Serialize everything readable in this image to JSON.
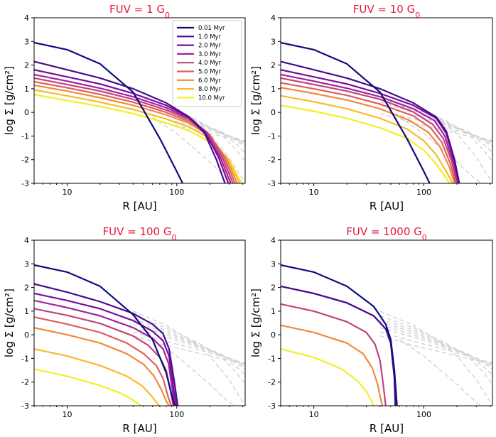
{
  "chart_data": [
    {
      "type": "line",
      "title": "FUV = 1 G₀",
      "title_prefix": "FUV = 1 G",
      "title_sub": "0",
      "xlabel": "R [AU]",
      "ylabel": "log Σ [g/cm²]",
      "xscale": "log",
      "xlim": [
        5,
        420
      ],
      "ylim": [
        -3,
        4
      ],
      "xticks": [
        10,
        100
      ],
      "yticks": [
        -3,
        -2,
        -1,
        0,
        1,
        2,
        3,
        4
      ],
      "legend": "top-right",
      "reference_curves": {
        "color": "#d4d4d4",
        "style": "dashed",
        "description": "unirradiated disc profiles at each age"
      },
      "series": [
        {
          "name": "0.01 Myr",
          "color": "#0c0c80",
          "x": [
            5,
            10,
            20,
            40,
            70,
            100,
            113
          ],
          "y": [
            2.95,
            2.65,
            2.05,
            0.85,
            -1.1,
            -2.5,
            -3
          ]
        },
        {
          "name": "1.0 Myr",
          "color": "#4b0c8f",
          "x": [
            5,
            10,
            20,
            40,
            80,
            130,
            180,
            230,
            275
          ],
          "y": [
            2.15,
            1.8,
            1.45,
            1.0,
            0.4,
            -0.2,
            -0.9,
            -2.0,
            -3
          ]
        },
        {
          "name": "2.0 Myr",
          "color": "#7a0c9e",
          "x": [
            5,
            10,
            20,
            40,
            80,
            130,
            180,
            240,
            295
          ],
          "y": [
            1.8,
            1.5,
            1.2,
            0.8,
            0.3,
            -0.2,
            -0.8,
            -1.9,
            -3
          ]
        },
        {
          "name": "3.0 Myr",
          "color": "#a0239c",
          "x": [
            5,
            10,
            20,
            40,
            80,
            130,
            180,
            250,
            310
          ],
          "y": [
            1.6,
            1.32,
            1.02,
            0.66,
            0.2,
            -0.25,
            -0.8,
            -1.9,
            -3
          ]
        },
        {
          "name": "4.0 Myr",
          "color": "#c1437e",
          "x": [
            5,
            10,
            20,
            40,
            80,
            130,
            190,
            260,
            325
          ],
          "y": [
            1.45,
            1.18,
            0.9,
            0.55,
            0.1,
            -0.3,
            -0.85,
            -1.9,
            -3
          ]
        },
        {
          "name": "5.0 Myr",
          "color": "#de6060",
          "x": [
            5,
            10,
            20,
            40,
            80,
            130,
            200,
            270,
            340
          ],
          "y": [
            1.3,
            1.04,
            0.76,
            0.43,
            0.0,
            -0.38,
            -0.95,
            -1.9,
            -3
          ]
        },
        {
          "name": "6.0 Myr",
          "color": "#f18a3c",
          "x": [
            5,
            10,
            20,
            40,
            80,
            130,
            200,
            280,
            355
          ],
          "y": [
            1.15,
            0.9,
            0.62,
            0.3,
            -0.1,
            -0.46,
            -1.0,
            -1.9,
            -3
          ]
        },
        {
          "name": "8.0 Myr",
          "color": "#fbb92a",
          "x": [
            5,
            10,
            20,
            40,
            80,
            130,
            200,
            290,
            375
          ],
          "y": [
            0.95,
            0.7,
            0.43,
            0.12,
            -0.28,
            -0.62,
            -1.1,
            -1.95,
            -3
          ]
        },
        {
          "name": "10.0 Myr",
          "color": "#f0f029",
          "x": [
            5,
            10,
            20,
            40,
            80,
            130,
            200,
            300,
            390
          ],
          "y": [
            0.75,
            0.5,
            0.25,
            -0.05,
            -0.45,
            -0.78,
            -1.25,
            -2.0,
            -3
          ]
        }
      ]
    },
    {
      "type": "line",
      "title": "FUV = 10 G₀",
      "title_prefix": "FUV = 10 G",
      "title_sub": "0",
      "xlabel": "R [AU]",
      "ylabel": "log Σ [g/cm²]",
      "xscale": "log",
      "xlim": [
        5,
        420
      ],
      "ylim": [
        -3,
        4
      ],
      "xticks": [
        10,
        100
      ],
      "yticks": [
        -3,
        -2,
        -1,
        0,
        1,
        2,
        3,
        4
      ],
      "reference_curves": {
        "color": "#d4d4d4",
        "style": "dashed"
      },
      "series": [
        {
          "name": "0.01 Myr",
          "color": "#0c0c80",
          "x": [
            5,
            10,
            20,
            40,
            70,
            100,
            113
          ],
          "y": [
            2.95,
            2.65,
            2.05,
            0.85,
            -1.1,
            -2.5,
            -3
          ]
        },
        {
          "name": "1.0 Myr",
          "color": "#4b0c8f",
          "x": [
            5,
            10,
            20,
            40,
            80,
            130,
            160,
            190,
            210
          ],
          "y": [
            2.15,
            1.8,
            1.45,
            1.0,
            0.4,
            -0.2,
            -0.8,
            -2.0,
            -3
          ]
        },
        {
          "name": "2.0 Myr",
          "color": "#7a0c9e",
          "x": [
            5,
            10,
            20,
            40,
            80,
            130,
            160,
            190,
            208
          ],
          "y": [
            1.8,
            1.5,
            1.2,
            0.8,
            0.3,
            -0.25,
            -0.9,
            -2.1,
            -3
          ]
        },
        {
          "name": "3.0 Myr",
          "color": "#a0239c",
          "x": [
            5,
            10,
            20,
            40,
            80,
            125,
            155,
            185,
            205
          ],
          "y": [
            1.6,
            1.32,
            1.02,
            0.66,
            0.15,
            -0.35,
            -1.0,
            -2.1,
            -3
          ]
        },
        {
          "name": "4.0 Myr",
          "color": "#c1437e",
          "x": [
            5,
            10,
            20,
            40,
            80,
            120,
            150,
            180,
            200
          ],
          "y": [
            1.45,
            1.18,
            0.9,
            0.55,
            0.02,
            -0.5,
            -1.1,
            -2.1,
            -3
          ]
        },
        {
          "name": "5.0 Myr",
          "color": "#de6060",
          "x": [
            5,
            10,
            20,
            40,
            80,
            115,
            145,
            175,
            195
          ],
          "y": [
            1.25,
            1.0,
            0.72,
            0.35,
            -0.15,
            -0.65,
            -1.25,
            -2.2,
            -3
          ]
        },
        {
          "name": "6.0 Myr",
          "color": "#f18a3c",
          "x": [
            5,
            10,
            20,
            40,
            75,
            110,
            140,
            170,
            190
          ],
          "y": [
            1.05,
            0.8,
            0.52,
            0.15,
            -0.35,
            -0.85,
            -1.45,
            -2.3,
            -3
          ]
        },
        {
          "name": "8.0 Myr",
          "color": "#fbb92a",
          "x": [
            5,
            10,
            20,
            40,
            70,
            100,
            130,
            160,
            183
          ],
          "y": [
            0.7,
            0.45,
            0.15,
            -0.25,
            -0.7,
            -1.2,
            -1.8,
            -2.5,
            -3
          ]
        },
        {
          "name": "10.0 Myr",
          "color": "#f0f029",
          "x": [
            5,
            10,
            20,
            40,
            70,
            100,
            125,
            150,
            172
          ],
          "y": [
            0.3,
            0.05,
            -0.25,
            -0.65,
            -1.1,
            -1.6,
            -2.1,
            -2.6,
            -3
          ]
        }
      ]
    },
    {
      "type": "line",
      "title": "FUV = 100 G₀",
      "title_prefix": "FUV = 100 G",
      "title_sub": "0",
      "xlabel": "R [AU]",
      "ylabel": "log Σ [g/cm²]",
      "xscale": "log",
      "xlim": [
        5,
        420
      ],
      "ylim": [
        -3,
        4
      ],
      "xticks": [
        10,
        100
      ],
      "yticks": [
        -3,
        -2,
        -1,
        0,
        1,
        2,
        3,
        4
      ],
      "reference_curves": {
        "color": "#d4d4d4",
        "style": "dashed"
      },
      "series": [
        {
          "name": "0.01 Myr",
          "color": "#0c0c80",
          "x": [
            5,
            10,
            20,
            40,
            60,
            80,
            95
          ],
          "y": [
            2.95,
            2.65,
            2.05,
            0.85,
            -0.2,
            -1.6,
            -3
          ]
        },
        {
          "name": "1.0 Myr",
          "color": "#4b0c8f",
          "x": [
            5,
            10,
            20,
            40,
            60,
            75,
            85,
            95,
            102
          ],
          "y": [
            2.15,
            1.8,
            1.4,
            0.9,
            0.45,
            0.05,
            -0.6,
            -2.0,
            -3
          ]
        },
        {
          "name": "2.0 Myr",
          "color": "#7a0c9e",
          "x": [
            5,
            10,
            20,
            40,
            60,
            75,
            85,
            93,
            99
          ],
          "y": [
            1.75,
            1.45,
            1.1,
            0.6,
            0.15,
            -0.25,
            -0.9,
            -2.2,
            -3
          ]
        },
        {
          "name": "3.0 Myr",
          "color": "#a0239c",
          "x": [
            5,
            10,
            20,
            40,
            60,
            75,
            84,
            91,
            96
          ],
          "y": [
            1.45,
            1.15,
            0.8,
            0.3,
            -0.15,
            -0.6,
            -1.2,
            -2.3,
            -3
          ]
        },
        {
          "name": "4.0 Myr",
          "color": "#c1437e",
          "x": [
            5,
            10,
            20,
            40,
            55,
            70,
            80,
            88,
            93
          ],
          "y": [
            1.1,
            0.82,
            0.48,
            -0.05,
            -0.45,
            -0.95,
            -1.5,
            -2.4,
            -3
          ]
        },
        {
          "name": "5.0 Myr",
          "color": "#de6060",
          "x": [
            5,
            10,
            20,
            35,
            50,
            65,
            75,
            83,
            89
          ],
          "y": [
            0.75,
            0.45,
            0.1,
            -0.35,
            -0.8,
            -1.3,
            -1.85,
            -2.6,
            -3
          ]
        },
        {
          "name": "6.0 Myr",
          "color": "#f18a3c",
          "x": [
            5,
            10,
            20,
            35,
            50,
            62,
            72,
            80,
            85
          ],
          "y": [
            0.3,
            0.0,
            -0.35,
            -0.8,
            -1.25,
            -1.75,
            -2.3,
            -2.8,
            -3
          ]
        },
        {
          "name": "8.0 Myr",
          "color": "#fbb92a",
          "x": [
            5,
            10,
            20,
            35,
            48,
            58,
            65,
            69
          ],
          "y": [
            -0.6,
            -0.9,
            -1.3,
            -1.75,
            -2.15,
            -2.55,
            -2.85,
            -3
          ]
        },
        {
          "name": "10.0 Myr",
          "color": "#f0f029",
          "x": [
            5,
            10,
            20,
            30,
            38,
            44,
            47
          ],
          "y": [
            -1.45,
            -1.75,
            -2.15,
            -2.45,
            -2.7,
            -2.9,
            -3
          ]
        }
      ]
    },
    {
      "type": "line",
      "title": "FUV = 1000 G₀",
      "title_prefix": "FUV = 1000 G",
      "title_sub": "0",
      "xlabel": "R [AU]",
      "ylabel": "log Σ [g/cm²]",
      "xscale": "log",
      "xlim": [
        5,
        420
      ],
      "ylim": [
        -3,
        4
      ],
      "xticks": [
        10,
        100
      ],
      "yticks": [
        -3,
        -2,
        -1,
        0,
        1,
        2,
        3,
        4
      ],
      "reference_curves": {
        "color": "#d4d4d4",
        "style": "dashed"
      },
      "series": [
        {
          "name": "0.01 Myr",
          "color": "#0c0c80",
          "x": [
            5,
            10,
            20,
            35,
            45,
            50,
            54,
            57
          ],
          "y": [
            2.95,
            2.65,
            2.05,
            1.2,
            0.45,
            -0.2,
            -1.5,
            -3
          ]
        },
        {
          "name": "1.0 Myr",
          "color": "#4b0c8f",
          "x": [
            5,
            10,
            20,
            35,
            45,
            50,
            54,
            55
          ],
          "y": [
            2.05,
            1.75,
            1.35,
            0.8,
            0.25,
            -0.35,
            -1.8,
            -3
          ]
        },
        {
          "name": "2.0 Myr",
          "color": "#7a0c9e",
          "x": [
            5,
            10,
            20,
            35,
            45,
            50,
            54,
            55
          ],
          "y": [
            2.05,
            1.75,
            1.35,
            0.8,
            0.25,
            -0.35,
            -1.8,
            -3
          ]
        },
        {
          "name": "4.0 Myr",
          "color": "#c1437e",
          "x": [
            5,
            10,
            20,
            30,
            36,
            40,
            43,
            45
          ],
          "y": [
            1.3,
            1.0,
            0.55,
            0.1,
            -0.4,
            -1.1,
            -2.2,
            -3
          ]
        },
        {
          "name": "6.0 Myr",
          "color": "#f18a3c",
          "x": [
            5,
            10,
            20,
            28,
            34,
            38,
            40,
            42
          ],
          "y": [
            0.4,
            0.1,
            -0.35,
            -0.8,
            -1.4,
            -2.1,
            -2.6,
            -3
          ]
        },
        {
          "name": "10.0 Myr",
          "color": "#f0f029",
          "x": [
            5,
            10,
            18,
            25,
            30,
            33,
            35
          ],
          "y": [
            -0.6,
            -0.95,
            -1.45,
            -1.95,
            -2.4,
            -2.75,
            -3
          ]
        }
      ]
    }
  ]
}
